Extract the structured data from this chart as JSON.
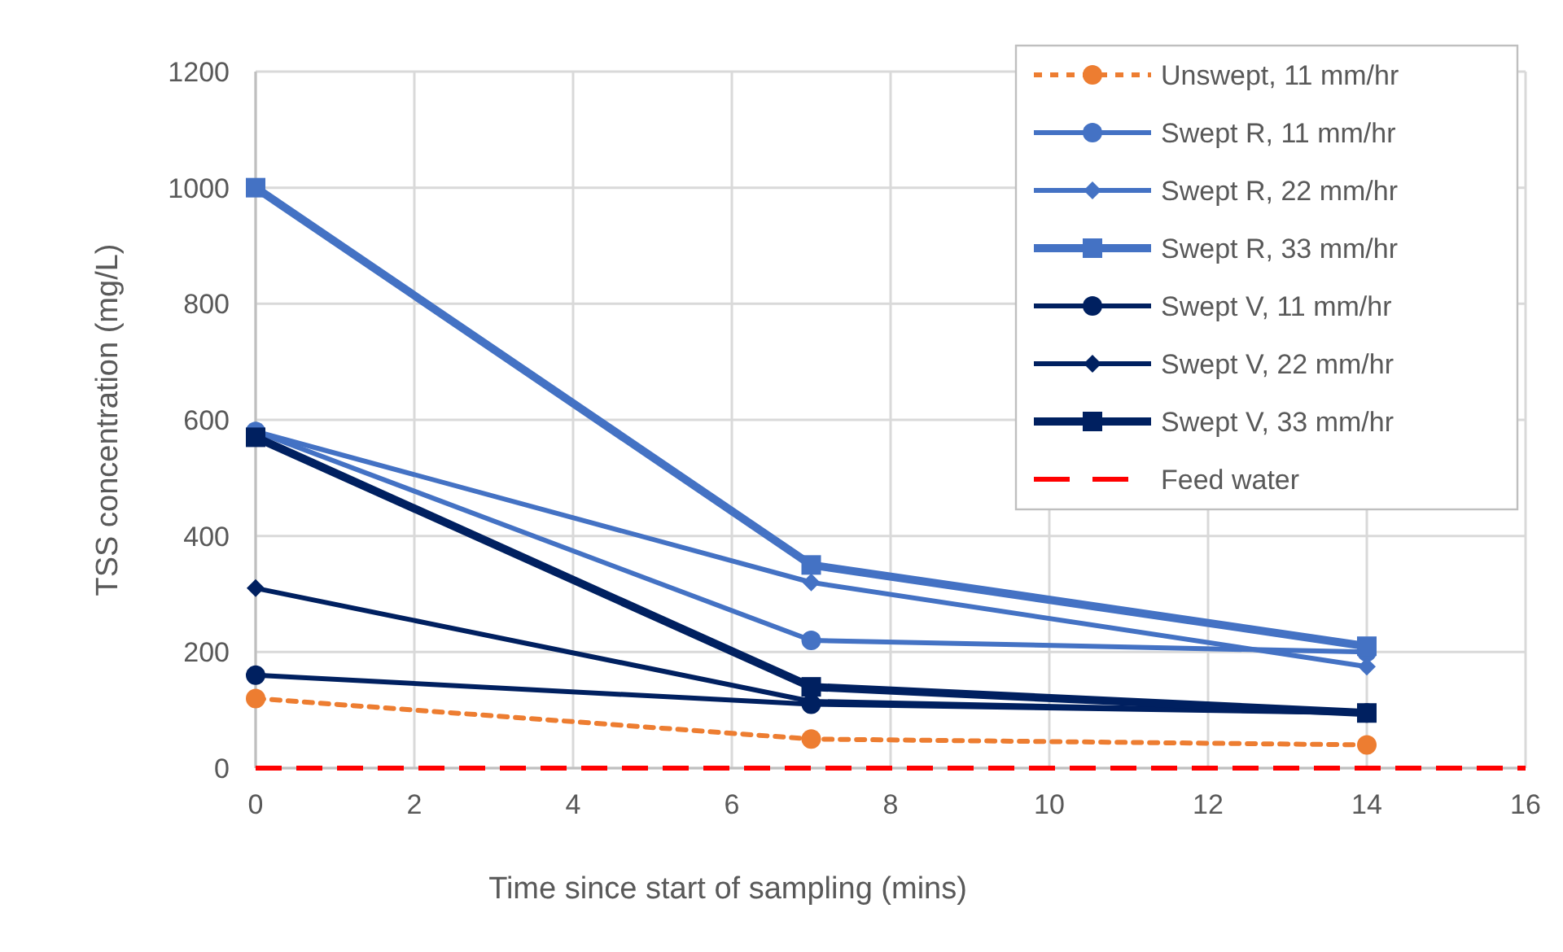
{
  "chart_data": {
    "type": "line",
    "xlabel": "Time since start of sampling (mins)",
    "ylabel": "TSS concentration (mg/L)",
    "x": [
      0,
      7,
      14
    ],
    "xlim": [
      0,
      16
    ],
    "xticks": [
      0,
      2,
      4,
      6,
      8,
      10,
      12,
      14,
      16
    ],
    "ylim": [
      0,
      1200
    ],
    "yticks": [
      0,
      200,
      400,
      600,
      800,
      1000,
      1200
    ],
    "grid": true,
    "legend": "top right",
    "series": [
      {
        "name": "Unswept, 11 mm/hr",
        "color": "#ed7d31",
        "values": [
          120,
          50,
          40
        ],
        "marker": "circle",
        "line_style": "dashed"
      },
      {
        "name": "Swept R, 11 mm/hr",
        "color": "#4472c4",
        "values": [
          580,
          220,
          200
        ],
        "marker": "circle",
        "line_style": "solid"
      },
      {
        "name": "Swept R, 22 mm/hr",
        "color": "#4472c4",
        "values": [
          580,
          320,
          175
        ],
        "marker": "diamond",
        "line_style": "solid"
      },
      {
        "name": "Swept R, 33 mm/hr",
        "color": "#4472c4",
        "values": [
          1000,
          350,
          210
        ],
        "marker": "square",
        "line_style": "solid"
      },
      {
        "name": "Swept V, 11 mm/hr",
        "color": "#002060",
        "values": [
          160,
          110,
          95
        ],
        "marker": "circle",
        "line_style": "solid"
      },
      {
        "name": "Swept V, 22 mm/hr",
        "color": "#002060",
        "values": [
          310,
          115,
          95
        ],
        "marker": "diamond",
        "line_style": "solid"
      },
      {
        "name": "Swept V, 33 mm/hr",
        "color": "#002060",
        "values": [
          570,
          140,
          95
        ],
        "marker": "square",
        "line_style": "solid"
      },
      {
        "name": "Feed water",
        "color": "#ff0000",
        "x": [
          0,
          16
        ],
        "values": [
          0,
          0
        ],
        "marker": "none",
        "line_style": "longdash"
      }
    ]
  }
}
